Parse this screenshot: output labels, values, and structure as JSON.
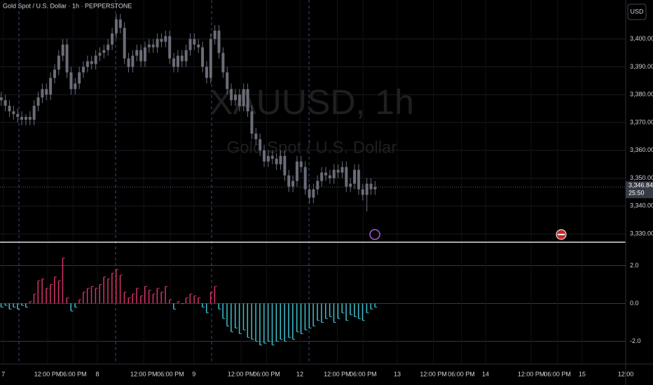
{
  "chart_data": {
    "type": "candlestick",
    "title": "Gold Spot / U.S. Dollar · 1h · PEPPERSTONE",
    "watermark": "XAUUSD, 1h",
    "watermark_subtitle": "Gold Spot / U.S. Dollar",
    "currency_button": "USD",
    "last_price_label": "3,346.84",
    "countdown": "25:50",
    "candle_color": "#6a6d78",
    "open": [
      3379,
      3378,
      3376,
      3374,
      3373,
      3372,
      3371,
      3372,
      3371,
      3376,
      3379,
      3382,
      3380,
      3386,
      3389,
      3394,
      3398,
      3388,
      3382,
      3384,
      3388,
      3390,
      3392,
      3391,
      3394,
      3395,
      3396,
      3398,
      3402,
      3407,
      3404,
      3393,
      3390,
      3394,
      3396,
      3392,
      3397,
      3398,
      3397,
      3400,
      3399,
      3401,
      3393,
      3390,
      3394,
      3392,
      3396,
      3400,
      3398,
      3397,
      3390,
      3386,
      3400,
      3403,
      3395,
      3388,
      3382,
      3378,
      3380,
      3376,
      3382,
      3374,
      3366,
      3364,
      3360,
      3356,
      3358,
      3357,
      3355,
      3358,
      3351,
      3347,
      3349,
      3356,
      3354,
      3346,
      3343,
      3346,
      3349,
      3352,
      3351,
      3350,
      3353,
      3352,
      3354,
      3347,
      3348,
      3353,
      3346,
      3344,
      3348,
      3346
    ],
    "high": [
      3381,
      3380,
      3378,
      3376,
      3375,
      3374,
      3373,
      3374,
      3378,
      3381,
      3384,
      3384,
      3388,
      3391,
      3396,
      3400,
      3400,
      3390,
      3386,
      3390,
      3392,
      3394,
      3394,
      3396,
      3397,
      3398,
      3400,
      3404,
      3409,
      3409,
      3406,
      3395,
      3396,
      3398,
      3398,
      3399,
      3400,
      3400,
      3402,
      3402,
      3403,
      3403,
      3395,
      3396,
      3396,
      3398,
      3402,
      3402,
      3400,
      3399,
      3392,
      3402,
      3405,
      3405,
      3397,
      3390,
      3384,
      3382,
      3382,
      3384,
      3384,
      3376,
      3368,
      3366,
      3362,
      3360,
      3360,
      3359,
      3360,
      3360,
      3353,
      3351,
      3358,
      3358,
      3356,
      3348,
      3348,
      3351,
      3354,
      3354,
      3353,
      3355,
      3355,
      3356,
      3356,
      3350,
      3355,
      3355,
      3348,
      3350,
      3350,
      3349
    ],
    "low": [
      3376,
      3374,
      3372,
      3371,
      3370,
      3369,
      3369,
      3369,
      3369,
      3374,
      3377,
      3378,
      3378,
      3384,
      3387,
      3392,
      3386,
      3380,
      3380,
      3382,
      3386,
      3388,
      3389,
      3389,
      3392,
      3393,
      3394,
      3396,
      3400,
      3402,
      3391,
      3388,
      3388,
      3392,
      3390,
      3390,
      3395,
      3395,
      3395,
      3397,
      3397,
      3391,
      3388,
      3388,
      3390,
      3390,
      3394,
      3396,
      3395,
      3388,
      3384,
      3384,
      3398,
      3393,
      3386,
      3380,
      3376,
      3376,
      3374,
      3374,
      3372,
      3364,
      3362,
      3358,
      3354,
      3354,
      3355,
      3353,
      3353,
      3349,
      3345,
      3345,
      3347,
      3352,
      3344,
      3341,
      3341,
      3344,
      3347,
      3349,
      3348,
      3348,
      3350,
      3350,
      3345,
      3345,
      3346,
      3344,
      3342,
      3338,
      3344,
      3344
    ],
    "close": [
      3378,
      3376,
      3374,
      3373,
      3372,
      3371,
      3372,
      3371,
      3376,
      3379,
      3382,
      3380,
      3386,
      3389,
      3394,
      3398,
      3388,
      3382,
      3384,
      3388,
      3390,
      3392,
      3391,
      3394,
      3395,
      3396,
      3398,
      3402,
      3407,
      3404,
      3393,
      3390,
      3394,
      3396,
      3392,
      3397,
      3398,
      3397,
      3400,
      3399,
      3401,
      3393,
      3390,
      3394,
      3392,
      3396,
      3400,
      3398,
      3397,
      3390,
      3386,
      3400,
      3403,
      3395,
      3388,
      3382,
      3378,
      3380,
      3376,
      3382,
      3374,
      3366,
      3364,
      3360,
      3356,
      3358,
      3357,
      3355,
      3358,
      3351,
      3347,
      3349,
      3356,
      3354,
      3346,
      3343,
      3346,
      3349,
      3352,
      3351,
      3350,
      3353,
      3352,
      3354,
      3347,
      3348,
      3353,
      3346,
      3344,
      3348,
      3346,
      3346.84
    ],
    "ylim": [
      3327,
      3414
    ],
    "yticks": [
      {
        "value": 3330,
        "label": "3,330.00"
      },
      {
        "value": 3340,
        "label": "3,340.00"
      },
      {
        "value": 3350,
        "label": "3,350.00"
      },
      {
        "value": 3360,
        "label": "3,360.00"
      },
      {
        "value": 3370,
        "label": "3,370.00"
      },
      {
        "value": 3380,
        "label": "3,380.00"
      },
      {
        "value": 3390,
        "label": "3,390.00"
      },
      {
        "value": 3400,
        "label": "3,400.00"
      }
    ],
    "xlim": [
      -0.3,
      152
    ],
    "xticks": [
      {
        "value": 0.5,
        "label": "7"
      },
      {
        "value": 11.3,
        "label": "12:00 PM"
      },
      {
        "value": 17.5,
        "label": "06:00 PM"
      },
      {
        "value": 23.4,
        "label": "8"
      },
      {
        "value": 34.7,
        "label": "12:00 PM"
      },
      {
        "value": 41.2,
        "label": "06:00 PM"
      },
      {
        "value": 46.9,
        "label": "9"
      },
      {
        "value": 58.4,
        "label": "12:00 PM"
      },
      {
        "value": 64.6,
        "label": "06:00 PM"
      },
      {
        "value": 72.7,
        "label": "12"
      },
      {
        "value": 81.8,
        "label": "12:00 PM"
      },
      {
        "value": 88.1,
        "label": "06:00 PM"
      },
      {
        "value": 96.4,
        "label": "13"
      },
      {
        "value": 105.2,
        "label": "12:00 PM"
      },
      {
        "value": 112.0,
        "label": "06:00 PM"
      },
      {
        "value": 117.9,
        "label": "14"
      },
      {
        "value": 129.0,
        "label": "12:00 PM"
      },
      {
        "value": 135.4,
        "label": "06:00 PM"
      },
      {
        "value": 141.4,
        "label": "15"
      },
      {
        "value": 152.0,
        "label": "12:00"
      }
    ],
    "oscillator": {
      "type": "bar",
      "positive_color": "#d6336c",
      "negative_color": "#3fc1d0",
      "values": [
        -0.2,
        -0.1,
        -0.3,
        -0.2,
        -0.3,
        -0.1,
        -0.2,
        0.1,
        0.5,
        1.2,
        1.3,
        0.8,
        1.0,
        1.4,
        1.2,
        2.4,
        0.3,
        -0.4,
        -0.2,
        0.2,
        0.6,
        0.8,
        0.9,
        0.8,
        1.0,
        1.4,
        1.3,
        1.6,
        1.8,
        1.5,
        0.6,
        0.3,
        0.5,
        0.8,
        0.4,
        0.9,
        0.7,
        0.5,
        0.8,
        0.6,
        0.9,
        0.2,
        -0.3,
        0.1,
        0,
        0.3,
        0.5,
        0.4,
        0.3,
        -0.2,
        -0.5,
        0.6,
        0.9,
        -0.3,
        -0.8,
        -1.2,
        -1.5,
        -1.3,
        -1.6,
        -1.4,
        -1.8,
        -1.9,
        -2.0,
        -2.2,
        -2.1,
        -2.0,
        -2.2,
        -2.0,
        -1.9,
        -2.0,
        -1.8,
        -1.9,
        -1.5,
        -1.6,
        -1.4,
        -1.3,
        -1.2,
        -0.9,
        -1.0,
        -0.8,
        -0.7,
        -1.0,
        -0.8,
        -0.5,
        -0.9,
        -0.6,
        -0.7,
        -0.8,
        -0.9,
        -0.5,
        -0.3,
        -0.2
      ],
      "ylim": [
        -3.2,
        3.2
      ],
      "yticks": [
        {
          "value": 2,
          "label": "2.0"
        },
        {
          "value": 0,
          "label": "0.0"
        },
        {
          "value": -2,
          "label": "-2.0"
        }
      ]
    }
  }
}
